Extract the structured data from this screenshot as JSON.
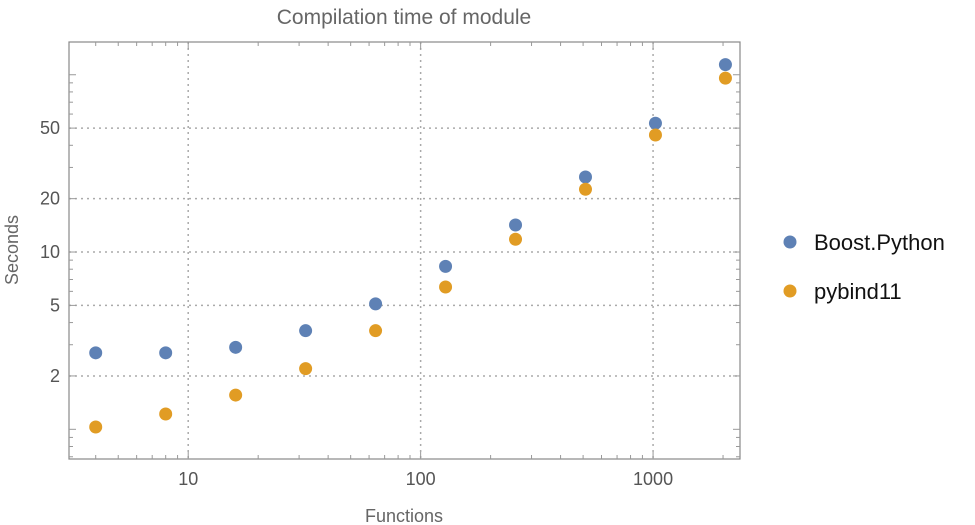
{
  "chart_data": {
    "type": "scatter",
    "title": "Compilation time of module",
    "xlabel": "Functions",
    "ylabel": "Seconds",
    "xscale": "log",
    "yscale": "log",
    "xlim": [
      3.07,
      2366
    ],
    "ylim": [
      0.68,
      153
    ],
    "xticks": [
      10,
      100,
      1000
    ],
    "xtick_labels": [
      "10",
      "100",
      "1000"
    ],
    "yticks": [
      2,
      5,
      10,
      20,
      50
    ],
    "ytick_labels": [
      "2",
      "5",
      "10",
      "20",
      "50"
    ],
    "grid": true,
    "legend_position": "right",
    "x": [
      4,
      8,
      16,
      32,
      64,
      128,
      256,
      512,
      1024,
      2048
    ],
    "series": [
      {
        "name": "Boost.Python",
        "color": "#5e81b5",
        "values": [
          2.7,
          2.7,
          2.9,
          3.6,
          5.1,
          8.3,
          14.2,
          26.5,
          53.3,
          114
        ]
      },
      {
        "name": "pybind11",
        "color": "#e19c24",
        "values": [
          1.03,
          1.22,
          1.56,
          2.2,
          3.6,
          6.35,
          11.8,
          22.6,
          45.7,
          95.7
        ]
      }
    ]
  }
}
